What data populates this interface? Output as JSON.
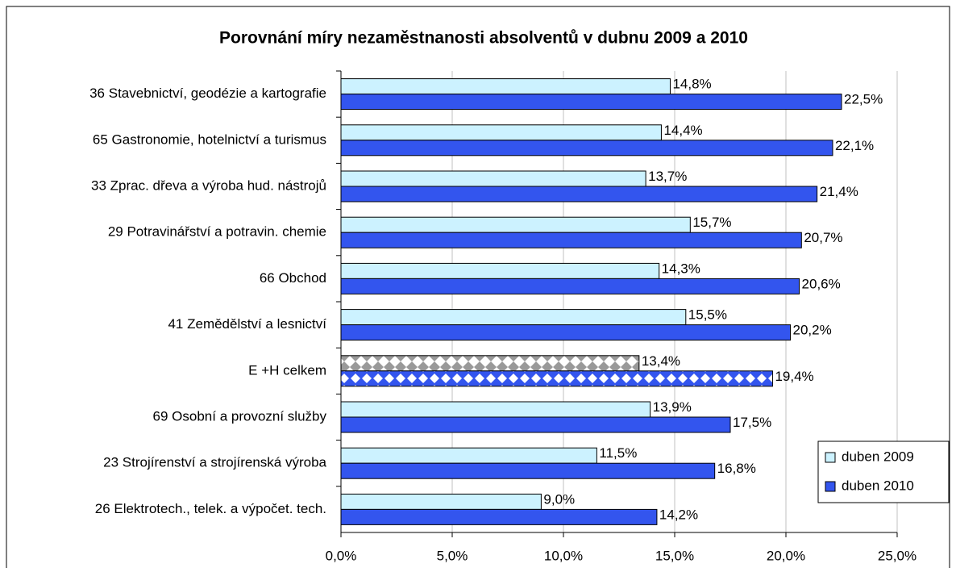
{
  "chart_data": {
    "type": "bar",
    "orientation": "horizontal",
    "title": "Porovnání míry nezaměstnanosti absolventů v dubnu 2009 a 2010",
    "categories": [
      "36 Stavebnictví, geodézie a kartografie",
      "65 Gastronomie, hotelnictví a turismus",
      "33 Zprac. dřeva a výroba hud. nástrojů",
      "29 Potravinářství a potravin. chemie",
      "66 Obchod",
      "41 Zemědělství a lesnictví",
      "E +H celkem",
      "69 Osobní a provozní služby",
      "23 Strojírenství a strojírenská výroba",
      "26 Elektrotech., telek. a výpočet. tech."
    ],
    "series": [
      {
        "name": "duben 2009",
        "color": "#ccf2ff",
        "pattern_color": "#999999",
        "values": [
          14.8,
          14.4,
          13.7,
          15.7,
          14.3,
          15.5,
          13.4,
          13.9,
          11.5,
          9.0
        ],
        "value_labels": [
          "14,8%",
          "14,4%",
          "13,7%",
          "15,7%",
          "14,3%",
          "15,5%",
          "13,4%",
          "13,9%",
          "11,5%",
          "9,0%"
        ]
      },
      {
        "name": "duben 2010",
        "color": "#3355ee",
        "pattern_color": "#3355ee",
        "values": [
          22.5,
          22.1,
          21.4,
          20.7,
          20.6,
          20.2,
          19.4,
          17.5,
          16.8,
          14.2
        ],
        "value_labels": [
          "22,5%",
          "22,1%",
          "21,4%",
          "20,7%",
          "20,6%",
          "20,2%",
          "19,4%",
          "17,5%",
          "16,8%",
          "14,2%"
        ]
      }
    ],
    "patterned_category": 6,
    "xlim": [
      0,
      25
    ],
    "xticks": [
      {
        "value": 0,
        "label": "0,0%"
      },
      {
        "value": 5,
        "label": "5,0%"
      },
      {
        "value": 10,
        "label": "10,0%"
      },
      {
        "value": 15,
        "label": "15,0%"
      },
      {
        "value": 20,
        "label": "20,0%"
      },
      {
        "value": 25,
        "label": "25,0%"
      }
    ],
    "grid": true,
    "legend": "right"
  }
}
